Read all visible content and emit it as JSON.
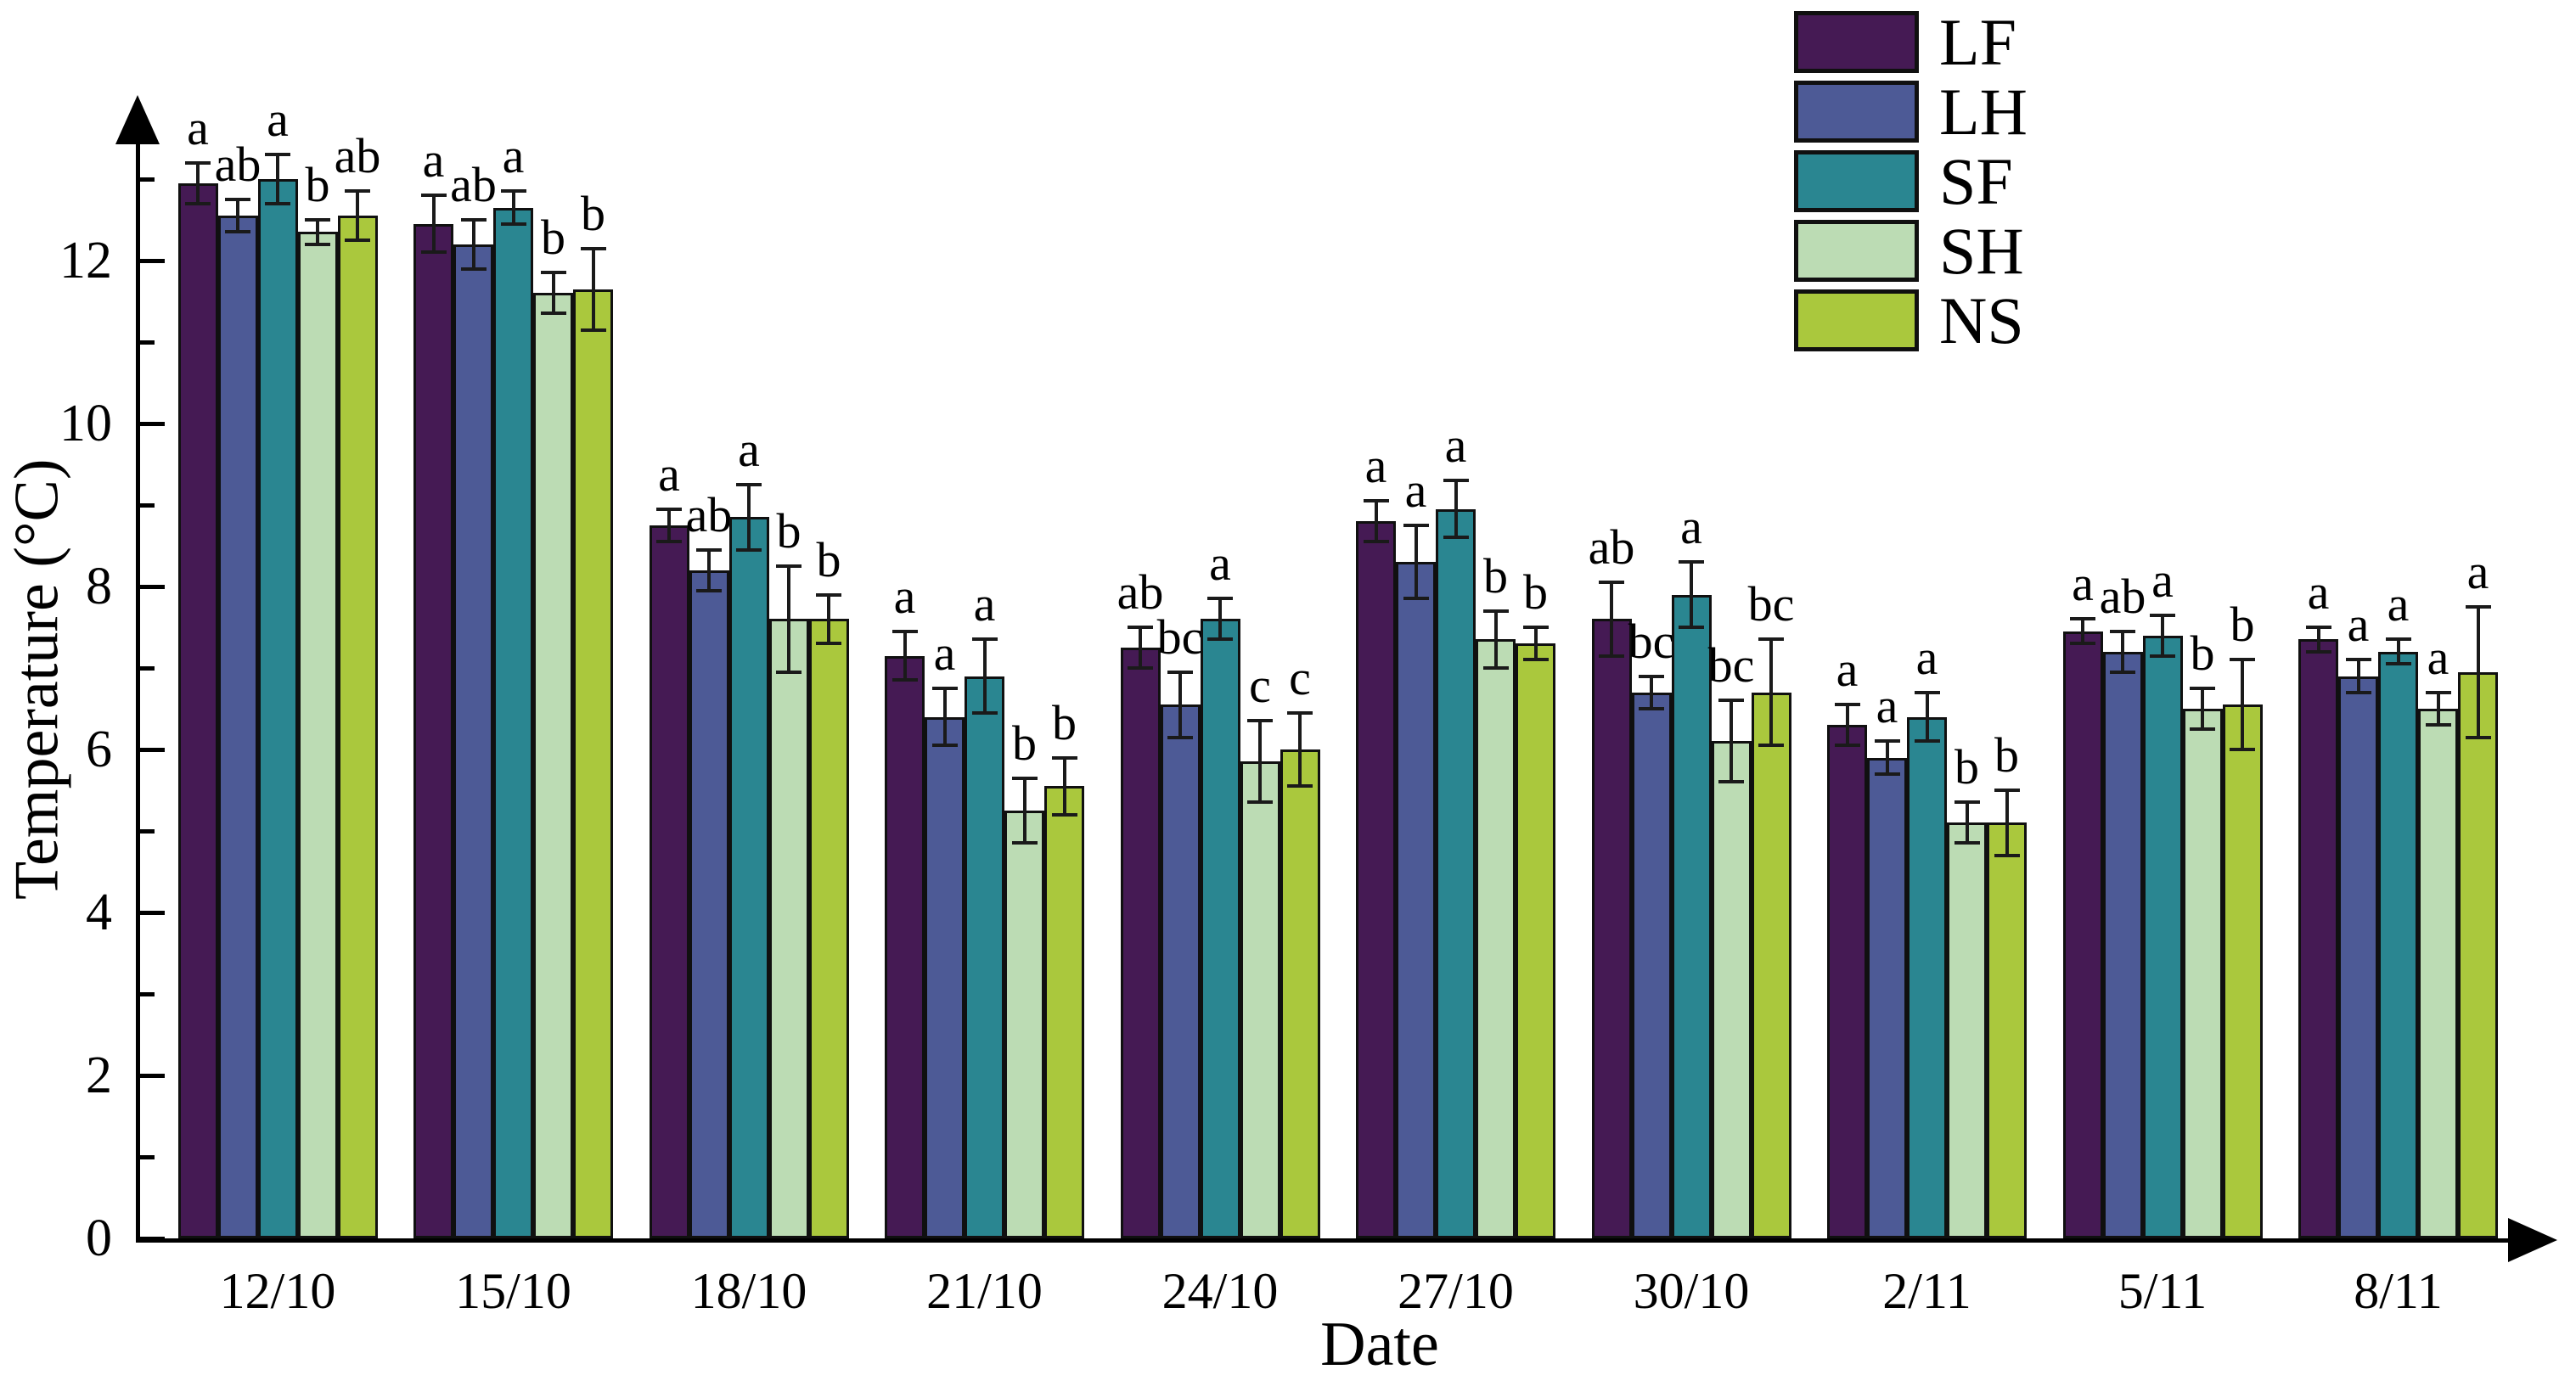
{
  "figure": {
    "background": "#ffffff"
  },
  "axes": {
    "y_title": "Temperature (°C)",
    "x_title": "Date",
    "y_major_ticks": [
      0,
      2,
      4,
      6,
      8,
      10,
      12
    ],
    "y_minor_ticks": [
      1,
      3,
      5,
      7,
      9,
      11,
      13
    ],
    "axis_color": "#000000"
  },
  "chart_data": {
    "type": "bar",
    "title": "",
    "xlabel": "Date",
    "ylabel": "Temperature (°C)",
    "ylim": [
      0,
      14
    ],
    "grid": false,
    "error_bars": true,
    "legend_position": "top-right",
    "categories": [
      "12/10",
      "15/10",
      "18/10",
      "21/10",
      "24/10",
      "27/10",
      "30/10",
      "2/11",
      "5/11",
      "8/11"
    ],
    "series": [
      {
        "name": "LF",
        "color": "#451a54",
        "values": [
          12.95,
          12.45,
          8.75,
          7.15,
          7.25,
          8.8,
          7.6,
          6.3,
          7.45,
          7.35
        ],
        "errors": [
          0.25,
          0.35,
          0.2,
          0.3,
          0.25,
          0.25,
          0.45,
          0.25,
          0.15,
          0.15
        ],
        "letters": [
          "a",
          "a",
          "a",
          "a",
          "ab",
          "a",
          "ab",
          "a",
          "a",
          "a"
        ]
      },
      {
        "name": "LH",
        "color": "#4d5a96",
        "values": [
          12.55,
          12.2,
          8.2,
          6.4,
          6.55,
          8.3,
          6.7,
          5.9,
          7.2,
          6.9
        ],
        "errors": [
          0.2,
          0.3,
          0.25,
          0.35,
          0.4,
          0.45,
          0.2,
          0.2,
          0.25,
          0.2
        ],
        "letters": [
          "ab",
          "ab",
          "ab",
          "a",
          "bc",
          "a",
          "bc",
          "a",
          "ab",
          "a"
        ]
      },
      {
        "name": "SF",
        "color": "#2a8691",
        "values": [
          13.0,
          12.65,
          8.85,
          6.9,
          7.6,
          8.95,
          7.9,
          6.4,
          7.4,
          7.2
        ],
        "errors": [
          0.3,
          0.2,
          0.4,
          0.45,
          0.25,
          0.35,
          0.4,
          0.3,
          0.25,
          0.15
        ],
        "letters": [
          "a",
          "a",
          "a",
          "a",
          "a",
          "a",
          "a",
          "a",
          "a",
          "a"
        ]
      },
      {
        "name": "SH",
        "color": "#bcdcb4",
        "values": [
          12.35,
          11.6,
          7.6,
          5.25,
          5.85,
          7.35,
          6.1,
          5.1,
          6.5,
          6.5
        ],
        "errors": [
          0.15,
          0.25,
          0.65,
          0.4,
          0.5,
          0.35,
          0.5,
          0.25,
          0.25,
          0.2
        ],
        "letters": [
          "b",
          "b",
          "b",
          "b",
          "c",
          "b",
          "bc",
          "b",
          "b",
          "a"
        ]
      },
      {
        "name": "NS",
        "color": "#aac83d",
        "values": [
          12.55,
          11.65,
          7.6,
          5.55,
          6.0,
          7.3,
          6.7,
          5.1,
          6.55,
          6.95
        ],
        "errors": [
          0.3,
          0.5,
          0.3,
          0.35,
          0.45,
          0.2,
          0.65,
          0.4,
          0.55,
          0.8
        ],
        "letters": [
          "ab",
          "b",
          "b",
          "b",
          "c",
          "b",
          "bc",
          "b",
          "b",
          "a"
        ]
      }
    ]
  }
}
